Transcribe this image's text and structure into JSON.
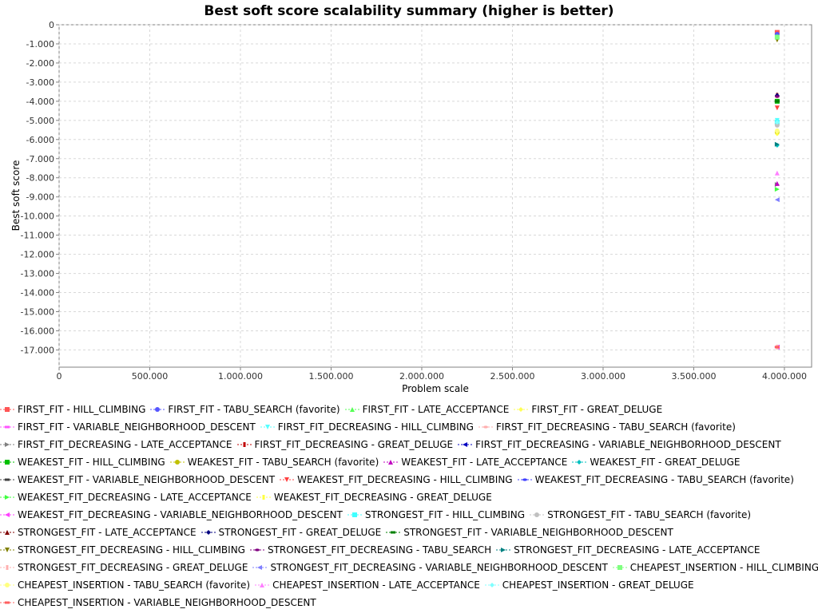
{
  "chart_data": {
    "type": "scatter",
    "title": "Best soft score scalability summary (higher is better)",
    "xlabel": "Problem scale",
    "ylabel": "Best soft score",
    "xlim": [
      0,
      4150000
    ],
    "ylim": [
      -17900,
      0
    ],
    "x_ticks": [
      "0",
      "500.000",
      "1.000.000",
      "1.500.000",
      "2.000.000",
      "2.500.000",
      "3.000.000",
      "3.500.000",
      "4.000.000"
    ],
    "x_tick_values": [
      0,
      500000,
      1000000,
      1500000,
      2000000,
      2500000,
      3000000,
      3500000,
      4000000
    ],
    "y_ticks": [
      "0",
      "-1.000",
      "-2.000",
      "-3.000",
      "-4.000",
      "-5.000",
      "-6.000",
      "-7.000",
      "-8.000",
      "-9.000",
      "-10.000",
      "-11.000",
      "-12.000",
      "-13.000",
      "-14.000",
      "-15.000",
      "-16.000",
      "-17.000"
    ],
    "y_tick_values": [
      0,
      -1000,
      -2000,
      -3000,
      -4000,
      -5000,
      -6000,
      -7000,
      -8000,
      -9000,
      -10000,
      -11000,
      -12000,
      -13000,
      -14000,
      -15000,
      -16000,
      -17000
    ],
    "grid": true,
    "legend_position": "bottom",
    "series": [
      {
        "name": "FIRST_FIT - HILL_CLIMBING",
        "color": "#ff5555",
        "shape": "square",
        "x": 3960000,
        "y": -400
      },
      {
        "name": "FIRST_FIT - TABU_SEARCH (favorite)",
        "color": "#5555ff",
        "shape": "circle",
        "x": 3960000,
        "y": -500
      },
      {
        "name": "FIRST_FIT - LATE_ACCEPTANCE",
        "color": "#55ff55",
        "shape": "triangle-up",
        "x": 3960000,
        "y": -600
      },
      {
        "name": "FIRST_FIT - GREAT_DELUGE",
        "color": "#ffff55",
        "shape": "diamond",
        "x": 3960000,
        "y": -5700
      },
      {
        "name": "FIRST_FIT - VARIABLE_NEIGHBORHOOD_DESCENT",
        "color": "#ff55ff",
        "shape": "rect-h",
        "x": 3960000,
        "y": -16850
      },
      {
        "name": "FIRST_FIT_DECREASING - HILL_CLIMBING",
        "color": "#55ffff",
        "shape": "triangle-down",
        "x": 3960000,
        "y": -5000
      },
      {
        "name": "FIRST_FIT_DECREASING - TABU_SEARCH (favorite)",
        "color": "#ffafaf",
        "shape": "ellipse-h",
        "x": 3960000,
        "y": -5200
      },
      {
        "name": "FIRST_FIT_DECREASING - LATE_ACCEPTANCE",
        "color": "#808080",
        "shape": "triangle-right",
        "x": 3960000,
        "y": -8350
      },
      {
        "name": "FIRST_FIT_DECREASING - GREAT_DELUGE",
        "color": "#c00000",
        "shape": "rect-v",
        "x": 3960000,
        "y": -3700
      },
      {
        "name": "FIRST_FIT_DECREASING - VARIABLE_NEIGHBORHOOD_DESCENT",
        "color": "#0000c0",
        "shape": "triangle-left",
        "x": 3960000,
        "y": -16850
      },
      {
        "name": "WEAKEST_FIT - HILL_CLIMBING",
        "color": "#00c000",
        "shape": "square",
        "x": 3960000,
        "y": -4000
      },
      {
        "name": "WEAKEST_FIT - TABU_SEARCH (favorite)",
        "color": "#c0c000",
        "shape": "circle",
        "x": 3960000,
        "y": -5600
      },
      {
        "name": "WEAKEST_FIT - LATE_ACCEPTANCE",
        "color": "#c000c0",
        "shape": "triangle-up",
        "x": 3960000,
        "y": -8300
      },
      {
        "name": "WEAKEST_FIT - GREAT_DELUGE",
        "color": "#00c0c0",
        "shape": "diamond",
        "x": 3960000,
        "y": -6300
      },
      {
        "name": "WEAKEST_FIT - VARIABLE_NEIGHBORHOOD_DESCENT",
        "color": "#404040",
        "shape": "rect-h",
        "x": 3960000,
        "y": -4000
      },
      {
        "name": "WEAKEST_FIT_DECREASING - HILL_CLIMBING",
        "color": "#ff4040",
        "shape": "triangle-down",
        "x": 3960000,
        "y": -4350
      },
      {
        "name": "WEAKEST_FIT_DECREASING - TABU_SEARCH (favorite)",
        "color": "#4040ff",
        "shape": "ellipse-h",
        "x": 3960000,
        "y": -16850
      },
      {
        "name": "WEAKEST_FIT_DECREASING - LATE_ACCEPTANCE",
        "color": "#40ff40",
        "shape": "triangle-right",
        "x": 3960000,
        "y": -8600
      },
      {
        "name": "WEAKEST_FIT_DECREASING - GREAT_DELUGE",
        "color": "#ffff40",
        "shape": "rect-v",
        "x": 3960000,
        "y": -5650
      },
      {
        "name": "WEAKEST_FIT_DECREASING - VARIABLE_NEIGHBORHOOD_DESCENT",
        "color": "#ff40ff",
        "shape": "triangle-left",
        "x": 3960000,
        "y": -16850
      },
      {
        "name": "STRONGEST_FIT - HILL_CLIMBING",
        "color": "#40ffff",
        "shape": "square",
        "x": 3960000,
        "y": -5100
      },
      {
        "name": "STRONGEST_FIT - TABU_SEARCH (favorite)",
        "color": "#c0c0c0",
        "shape": "circle",
        "x": 3960000,
        "y": -5250
      },
      {
        "name": "STRONGEST_FIT - LATE_ACCEPTANCE",
        "color": "#800000",
        "shape": "triangle-up",
        "x": 3960000,
        "y": -3650
      },
      {
        "name": "STRONGEST_FIT - GREAT_DELUGE",
        "color": "#000080",
        "shape": "diamond",
        "x": 3960000,
        "y": -3700
      },
      {
        "name": "STRONGEST_FIT - VARIABLE_NEIGHBORHOOD_DESCENT",
        "color": "#008000",
        "shape": "rect-h",
        "x": 3960000,
        "y": -4000
      },
      {
        "name": "STRONGEST_FIT_DECREASING - HILL_CLIMBING",
        "color": "#808000",
        "shape": "triangle-down",
        "x": 3960000,
        "y": -800
      },
      {
        "name": "STRONGEST_FIT_DECREASING - TABU_SEARCH",
        "color": "#800080",
        "shape": "ellipse-h",
        "x": 3960000,
        "y": -3750
      },
      {
        "name": "STRONGEST_FIT_DECREASING - LATE_ACCEPTANCE",
        "color": "#008080",
        "shape": "triangle-right",
        "x": 3960000,
        "y": -6250
      },
      {
        "name": "STRONGEST_FIT_DECREASING - GREAT_DELUGE",
        "color": "#ffb0b0",
        "shape": "rect-v",
        "x": 3960000,
        "y": -16850
      },
      {
        "name": "STRONGEST_FIT_DECREASING - VARIABLE_NEIGHBORHOOD_DESCENT",
        "color": "#8080ff",
        "shape": "triangle-left",
        "x": 3960000,
        "y": -9150
      },
      {
        "name": "CHEAPEST_INSERTION - HILL_CLIMBING",
        "color": "#80ff80",
        "shape": "square",
        "x": 3960000,
        "y": -650
      },
      {
        "name": "CHEAPEST_INSERTION - TABU_SEARCH (favorite)",
        "color": "#ffff80",
        "shape": "circle",
        "x": 3960000,
        "y": -5550
      },
      {
        "name": "CHEAPEST_INSERTION - LATE_ACCEPTANCE",
        "color": "#ff80ff",
        "shape": "triangle-up",
        "x": 3960000,
        "y": -7750
      },
      {
        "name": "CHEAPEST_INSERTION - GREAT_DELUGE",
        "color": "#80ffff",
        "shape": "diamond",
        "x": 3960000,
        "y": -5100
      },
      {
        "name": "CHEAPEST_INSERTION - VARIABLE_NEIGHBORHOOD_DESCENT",
        "color": "#ff6060",
        "shape": "rect-h",
        "x": 3960000,
        "y": -16850
      }
    ]
  }
}
